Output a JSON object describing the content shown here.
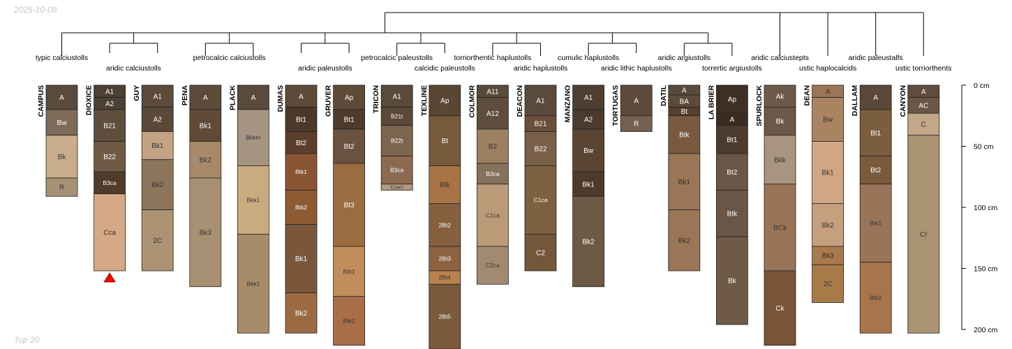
{
  "meta": {
    "date_label": "2025-10-08",
    "footer_label": "Top 20"
  },
  "chart_data": {
    "type": "soil-profile-sketch",
    "depth_unit": "cm",
    "depth_range": [
      0,
      200
    ],
    "depth_ticks": [
      0,
      50,
      100,
      150,
      200
    ],
    "depth_tick_labels": [
      "0 cm",
      "50 cm",
      "100 cm",
      "150 cm",
      "200 cm"
    ],
    "profiles": [
      {
        "name": "CAMPUS",
        "taxon": "typic calciustolls",
        "horizons": [
          {
            "name": "A",
            "top": 0,
            "bottom": 20,
            "color": "#5a4a3b"
          },
          {
            "name": "Bw",
            "top": 20,
            "bottom": 41,
            "color": "#7d6a58"
          },
          {
            "name": "Bk",
            "top": 41,
            "bottom": 76,
            "color": "#c9ad8c"
          },
          {
            "name": "R",
            "top": 76,
            "bottom": 91,
            "color": "#a89276"
          }
        ]
      },
      {
        "name": "DIOXICE",
        "taxon": "aridic calciustolls",
        "contact_marker": true,
        "horizons": [
          {
            "name": "A1",
            "top": 0,
            "bottom": 10,
            "color": "#4d4034"
          },
          {
            "name": "A2",
            "top": 10,
            "bottom": 20,
            "color": "#4d4034"
          },
          {
            "name": "B21",
            "top": 20,
            "bottom": 46,
            "color": "#5f4d3d"
          },
          {
            "name": "B22",
            "top": 46,
            "bottom": 71,
            "color": "#6f5a45"
          },
          {
            "name": "B3ca",
            "top": 71,
            "bottom": 89,
            "color": "#4f3c2c"
          },
          {
            "name": "Cca",
            "top": 89,
            "bottom": 152,
            "color": "#d5a987"
          }
        ]
      },
      {
        "name": "GUY",
        "taxon": "aridic calciustolls",
        "horizons": [
          {
            "name": "A1",
            "top": 0,
            "bottom": 18,
            "color": "#5c4a3b"
          },
          {
            "name": "A2",
            "top": 18,
            "bottom": 38,
            "color": "#5a4939"
          },
          {
            "name": "Bk1",
            "top": 38,
            "bottom": 61,
            "color": "#c4a384"
          },
          {
            "name": "Bk2",
            "top": 61,
            "bottom": 102,
            "color": "#8c755a"
          },
          {
            "name": "2C",
            "top": 102,
            "bottom": 152,
            "color": "#ab9373"
          }
        ]
      },
      {
        "name": "PENA",
        "taxon": "petrocalcic calciustolls",
        "horizons": [
          {
            "name": "A",
            "top": 0,
            "bottom": 20,
            "color": "#5c4a3b"
          },
          {
            "name": "Bk1",
            "top": 20,
            "bottom": 46,
            "color": "#5f4a37"
          },
          {
            "name": "Bk2",
            "top": 46,
            "bottom": 76,
            "color": "#a88a6a"
          },
          {
            "name": "Bk3",
            "top": 76,
            "bottom": 165,
            "color": "#a89072"
          }
        ]
      },
      {
        "name": "PLACK",
        "taxon": "petrocalcic calciustolls",
        "horizons": [
          {
            "name": "A",
            "top": 0,
            "bottom": 20,
            "color": "#5a4a3b"
          },
          {
            "name": "Bkkm",
            "top": 20,
            "bottom": 66,
            "color": "#a69483"
          },
          {
            "name": "Bkk1",
            "top": 66,
            "bottom": 122,
            "color": "#c9ab80"
          },
          {
            "name": "Bkk2",
            "top": 122,
            "bottom": 203,
            "color": "#a88c6a"
          }
        ]
      },
      {
        "name": "DUMAS",
        "taxon": "aridic paleustolls",
        "horizons": [
          {
            "name": "A",
            "top": 0,
            "bottom": 18,
            "color": "#5e4a38"
          },
          {
            "name": "Bt1",
            "top": 18,
            "bottom": 38,
            "color": "#4b3829"
          },
          {
            "name": "Bt2",
            "top": 38,
            "bottom": 56,
            "color": "#5b3f2d"
          },
          {
            "name": "Btk1",
            "top": 56,
            "bottom": 86,
            "color": "#8a5432"
          },
          {
            "name": "Btk2",
            "top": 86,
            "bottom": 114,
            "color": "#8c5a33"
          },
          {
            "name": "Bk1",
            "top": 114,
            "bottom": 170,
            "color": "#7a573b"
          },
          {
            "name": "Bk2",
            "top": 170,
            "bottom": 203,
            "color": "#9c6a42"
          }
        ]
      },
      {
        "name": "GRUVER",
        "taxon": "aridic paleustolls",
        "horizons": [
          {
            "name": "Ap",
            "top": 0,
            "bottom": 20,
            "color": "#5e4a38"
          },
          {
            "name": "Bt1",
            "top": 20,
            "bottom": 36,
            "color": "#4c3b2c"
          },
          {
            "name": "Bt2",
            "top": 36,
            "bottom": 64,
            "color": "#6a5240"
          },
          {
            "name": "Bt3",
            "top": 64,
            "bottom": 132,
            "color": "#9b6c40"
          },
          {
            "name": "Btk1",
            "top": 132,
            "bottom": 173,
            "color": "#c18d5a"
          },
          {
            "name": "Btk2",
            "top": 173,
            "bottom": 213,
            "color": "#a86e47"
          }
        ]
      },
      {
        "name": "TRICON",
        "taxon": "petrocalcic paleustolls",
        "horizons": [
          {
            "name": "A1",
            "top": 0,
            "bottom": 18,
            "color": "#5a4a3b"
          },
          {
            "name": "B21t",
            "top": 18,
            "bottom": 33,
            "color": "#5a4838"
          },
          {
            "name": "B22t",
            "top": 33,
            "bottom": 58,
            "color": "#7d6650"
          },
          {
            "name": "B3ca",
            "top": 58,
            "bottom": 81,
            "color": "#8c6a50"
          },
          {
            "name": "Ccam",
            "top": 81,
            "bottom": 86,
            "color": "#b09a80"
          }
        ]
      },
      {
        "name": "TEXLINE",
        "taxon": "calcidic paleustolls",
        "horizons": [
          {
            "name": "Ap",
            "top": 0,
            "bottom": 25,
            "color": "#5a4634"
          },
          {
            "name": "Bt",
            "top": 25,
            "bottom": 66,
            "color": "#765a3a"
          },
          {
            "name": "Btk",
            "top": 66,
            "bottom": 97,
            "color": "#a87445"
          },
          {
            "name": "2Bt2",
            "top": 97,
            "bottom": 132,
            "color": "#86603e"
          },
          {
            "name": "2Bt3",
            "top": 132,
            "bottom": 152,
            "color": "#8c6240"
          },
          {
            "name": "2Bt4",
            "top": 152,
            "bottom": 163,
            "color": "#b8824f"
          },
          {
            "name": "2Bt5",
            "top": 163,
            "bottom": 216,
            "color": "#7a5a3a"
          }
        ]
      },
      {
        "name": "COLMOR",
        "taxon": "torriorthentic haplustolls",
        "horizons": [
          {
            "name": "A11",
            "top": 0,
            "bottom": 10,
            "color": "#5a4a3b"
          },
          {
            "name": "A12",
            "top": 10,
            "bottom": 36,
            "color": "#5e4d3d"
          },
          {
            "name": "B2",
            "top": 36,
            "bottom": 64,
            "color": "#9c8062"
          },
          {
            "name": "B3ca",
            "top": 64,
            "bottom": 81,
            "color": "#85715c"
          },
          {
            "name": "C1ca",
            "top": 81,
            "bottom": 132,
            "color": "#bb9b77"
          },
          {
            "name": "C2ca",
            "top": 132,
            "bottom": 163,
            "color": "#a28a70"
          }
        ]
      },
      {
        "name": "DEACON",
        "taxon": "aridic haplustolls",
        "horizons": [
          {
            "name": "A1",
            "top": 0,
            "bottom": 25,
            "color": "#5a4a3b"
          },
          {
            "name": "B21",
            "top": 25,
            "bottom": 38,
            "color": "#6a4d3a"
          },
          {
            "name": "B22",
            "top": 38,
            "bottom": 66,
            "color": "#7a5f48"
          },
          {
            "name": "C1ca",
            "top": 66,
            "bottom": 122,
            "color": "#7c6040"
          },
          {
            "name": "C2",
            "top": 122,
            "bottom": 152,
            "color": "#72573a"
          }
        ]
      },
      {
        "name": "MANZANO",
        "taxon": "cumulic haplustolls",
        "horizons": [
          {
            "name": "A1",
            "top": 0,
            "bottom": 20,
            "color": "#4e3e31"
          },
          {
            "name": "A2",
            "top": 20,
            "bottom": 36,
            "color": "#4a3b2e"
          },
          {
            "name": "Bw",
            "top": 36,
            "bottom": 71,
            "color": "#5a4532"
          },
          {
            "name": "Bk1",
            "top": 71,
            "bottom": 91,
            "color": "#4d3a2b"
          },
          {
            "name": "Bk2",
            "top": 91,
            "bottom": 165,
            "color": "#6d5a45"
          }
        ]
      },
      {
        "name": "TORTUGAS",
        "taxon": "aridic lithic haplustolls",
        "horizons": [
          {
            "name": "A",
            "top": 0,
            "bottom": 25,
            "color": "#5e4b3c"
          },
          {
            "name": "R",
            "top": 25,
            "bottom": 38,
            "color": "#766050"
          }
        ]
      },
      {
        "name": "DATIL",
        "taxon": "aridic argiustolls",
        "horizons": [
          {
            "name": "A",
            "top": 0,
            "bottom": 8,
            "color": "#5a4a3b"
          },
          {
            "name": "BA",
            "top": 8,
            "bottom": 18,
            "color": "#5c4a3a"
          },
          {
            "name": "Bt",
            "top": 18,
            "bottom": 25,
            "color": "#56402f"
          },
          {
            "name": "Btk",
            "top": 25,
            "bottom": 56,
            "color": "#7a5a3e"
          },
          {
            "name": "Bk1",
            "top": 56,
            "bottom": 102,
            "color": "#9a7556"
          },
          {
            "name": "Bk2",
            "top": 102,
            "bottom": 152,
            "color": "#9a7556"
          }
        ]
      },
      {
        "name": "LA BRIER",
        "taxon": "torrertic argiustolls",
        "horizons": [
          {
            "name": "Ap",
            "top": 0,
            "bottom": 23,
            "color": "#3e2f24"
          },
          {
            "name": "A",
            "top": 23,
            "bottom": 33,
            "color": "#3b2c22"
          },
          {
            "name": "Bt1",
            "top": 33,
            "bottom": 56,
            "color": "#4c3c2f"
          },
          {
            "name": "Bt2",
            "top": 56,
            "bottom": 86,
            "color": "#6a5646"
          },
          {
            "name": "Btk",
            "top": 86,
            "bottom": 124,
            "color": "#6a5646"
          },
          {
            "name": "Bk",
            "top": 124,
            "bottom": 196,
            "color": "#6e5a47"
          }
        ]
      },
      {
        "name": "SPURLOCK",
        "taxon": "aridic calciustepts",
        "horizons": [
          {
            "name": "Ak",
            "top": 0,
            "bottom": 18,
            "color": "#6b5a47"
          },
          {
            "name": "Bk",
            "top": 18,
            "bottom": 41,
            "color": "#6b5846"
          },
          {
            "name": "Bkk",
            "top": 41,
            "bottom": 81,
            "color": "#a89480"
          },
          {
            "name": "BCk",
            "top": 81,
            "bottom": 152,
            "color": "#9a7456"
          },
          {
            "name": "Ck",
            "top": 152,
            "bottom": 213,
            "color": "#7a5436"
          }
        ]
      },
      {
        "name": "DEAN",
        "taxon": "ustic haplocalcids",
        "horizons": [
          {
            "name": "A",
            "top": 0,
            "bottom": 10,
            "color": "#9a7656"
          },
          {
            "name": "Bw",
            "top": 10,
            "bottom": 46,
            "color": "#aa8462"
          },
          {
            "name": "Bk1",
            "top": 46,
            "bottom": 97,
            "color": "#d0a684"
          },
          {
            "name": "Bk2",
            "top": 97,
            "bottom": 132,
            "color": "#c6a07e"
          },
          {
            "name": "Bk3",
            "top": 132,
            "bottom": 147,
            "color": "#a87a4e"
          },
          {
            "name": "2C",
            "top": 147,
            "bottom": 178,
            "color": "#a87a48"
          }
        ]
      },
      {
        "name": "DALLAM",
        "taxon": "aridic paleustalfs",
        "horizons": [
          {
            "name": "A",
            "top": 0,
            "bottom": 20,
            "color": "#5a4838"
          },
          {
            "name": "Bt1",
            "top": 20,
            "bottom": 58,
            "color": "#7a5e3e"
          },
          {
            "name": "Bt2",
            "top": 58,
            "bottom": 81,
            "color": "#7a5a3a"
          },
          {
            "name": "Btk1",
            "top": 81,
            "bottom": 145,
            "color": "#9a7458"
          },
          {
            "name": "Btk2",
            "top": 145,
            "bottom": 203,
            "color": "#a8744a"
          }
        ]
      },
      {
        "name": "CANYON",
        "taxon": "ustic torriorthents",
        "horizons": [
          {
            "name": "A",
            "top": 0,
            "bottom": 10,
            "color": "#5e4c3c"
          },
          {
            "name": "AC",
            "top": 10,
            "bottom": 23,
            "color": "#6a5646"
          },
          {
            "name": "C",
            "top": 23,
            "bottom": 41,
            "color": "#c2a788"
          },
          {
            "name": "Cr",
            "top": 41,
            "bottom": 203,
            "color": "#ab9474"
          }
        ]
      }
    ],
    "taxon_groups": [
      {
        "label": "typic calciustolls",
        "members": [
          0
        ]
      },
      {
        "label": "aridic calciustolls",
        "members": [
          1,
          2
        ]
      },
      {
        "label": "petrocalcic calciustolls",
        "members": [
          3,
          4
        ]
      },
      {
        "label": "aridic paleustolls",
        "members": [
          5,
          6
        ]
      },
      {
        "label": "petrocalcic paleustolls",
        "members": [
          7
        ]
      },
      {
        "label": "calcidic paleustolls",
        "members": [
          8
        ]
      },
      {
        "label": "torriorthentic haplustolls",
        "members": [
          9
        ]
      },
      {
        "label": "aridic haplustolls",
        "members": [
          10
        ]
      },
      {
        "label": "cumulic haplustolls",
        "members": [
          11
        ]
      },
      {
        "label": "aridic lithic haplustolls",
        "members": [
          12
        ]
      },
      {
        "label": "aridic argiustolls",
        "members": [
          13
        ]
      },
      {
        "label": "torrertic argiustolls",
        "members": [
          14
        ]
      },
      {
        "label": "aridic calciustepts",
        "members": [
          15
        ]
      },
      {
        "label": "ustic haplocalcids",
        "members": [
          16
        ]
      },
      {
        "label": "aridic paleustalfs",
        "members": [
          17
        ]
      },
      {
        "label": "ustic torriorthents",
        "members": [
          18
        ]
      }
    ]
  }
}
